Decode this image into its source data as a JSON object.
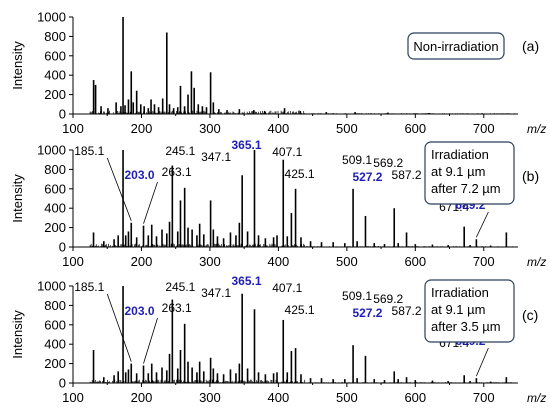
{
  "chart_data": [
    {
      "type": "bar",
      "panel_label": "(a)",
      "condition_lines": [
        "Non-irradiation"
      ],
      "xlabel": "m/z",
      "ylabel": "Intensity",
      "xlim": [
        100,
        750
      ],
      "ylim": [
        0,
        1000
      ],
      "x_ticks": [
        "100",
        "200",
        "300",
        "400",
        "500",
        "600",
        "700"
      ],
      "y_ticks": [
        "0",
        "200",
        "400",
        "600",
        "800",
        "1000"
      ],
      "peak_labels": [],
      "peaks": [
        {
          "x": 130.1,
          "y": 350
        },
        {
          "x": 133,
          "y": 300
        },
        {
          "x": 141,
          "y": 80
        },
        {
          "x": 151,
          "y": 60
        },
        {
          "x": 163,
          "y": 120
        },
        {
          "x": 170,
          "y": 80
        },
        {
          "x": 173.1,
          "y": 1000
        },
        {
          "x": 176,
          "y": 90
        },
        {
          "x": 181,
          "y": 150
        },
        {
          "x": 185.1,
          "y": 440
        },
        {
          "x": 188,
          "y": 120
        },
        {
          "x": 193,
          "y": 240
        },
        {
          "x": 199,
          "y": 100
        },
        {
          "x": 204,
          "y": 80
        },
        {
          "x": 210,
          "y": 60
        },
        {
          "x": 214,
          "y": 150
        },
        {
          "x": 219,
          "y": 100
        },
        {
          "x": 225,
          "y": 70
        },
        {
          "x": 231,
          "y": 160
        },
        {
          "x": 237,
          "y": 840
        },
        {
          "x": 241,
          "y": 100
        },
        {
          "x": 247,
          "y": 60
        },
        {
          "x": 253,
          "y": 70
        },
        {
          "x": 257,
          "y": 290
        },
        {
          "x": 263,
          "y": 80
        },
        {
          "x": 268,
          "y": 200
        },
        {
          "x": 273,
          "y": 440
        },
        {
          "x": 277,
          "y": 270
        },
        {
          "x": 283,
          "y": 100
        },
        {
          "x": 289,
          "y": 80
        },
        {
          "x": 295,
          "y": 70
        },
        {
          "x": 301,
          "y": 430
        },
        {
          "x": 305,
          "y": 120
        },
        {
          "x": 313,
          "y": 50
        },
        {
          "x": 325,
          "y": 40
        },
        {
          "x": 343,
          "y": 50
        },
        {
          "x": 364,
          "y": 40
        },
        {
          "x": 380,
          "y": 30
        },
        {
          "x": 409,
          "y": 60
        },
        {
          "x": 432,
          "y": 30
        },
        {
          "x": 470,
          "y": 20
        },
        {
          "x": 512,
          "y": 20
        },
        {
          "x": 560,
          "y": 15
        },
        {
          "x": 620,
          "y": 10
        }
      ]
    },
    {
      "type": "bar",
      "panel_label": "(b)",
      "condition_lines": [
        "Irradiation",
        "at 9.1 µm",
        "after 7.2 µm"
      ],
      "xlabel": "m/z",
      "ylabel": "Intensity",
      "xlim": [
        100,
        750
      ],
      "ylim": [
        0,
        1000
      ],
      "x_ticks": [
        "100",
        "200",
        "300",
        "400",
        "500",
        "600",
        "700"
      ],
      "y_ticks": [
        "0",
        "200",
        "400",
        "600",
        "800",
        "1000"
      ],
      "peak_labels": [
        {
          "text": "185.1",
          "x": 185.1,
          "highlight": false
        },
        {
          "text": "203.0",
          "x": 203.0,
          "highlight": true
        },
        {
          "text": "245.1",
          "x": 245.1,
          "highlight": false
        },
        {
          "text": "263.1",
          "x": 263.1,
          "highlight": false
        },
        {
          "text": "347.1",
          "x": 347.1,
          "highlight": false
        },
        {
          "text": "365.1",
          "x": 365.1,
          "highlight": true
        },
        {
          "text": "407.1",
          "x": 407.1,
          "highlight": false
        },
        {
          "text": "425.1",
          "x": 425.1,
          "highlight": false
        },
        {
          "text": "509.1",
          "x": 509.1,
          "highlight": false
        },
        {
          "text": "527.2",
          "x": 527.2,
          "highlight": true
        },
        {
          "text": "569.2",
          "x": 569.2,
          "highlight": false
        },
        {
          "text": "587.2",
          "x": 587.2,
          "highlight": false
        },
        {
          "text": "671.4",
          "x": 671.4,
          "highlight": false
        },
        {
          "text": "689.2",
          "x": 689.2,
          "highlight": true
        }
      ],
      "peaks": [
        {
          "x": 130,
          "y": 150
        },
        {
          "x": 145,
          "y": 60
        },
        {
          "x": 160,
          "y": 80
        },
        {
          "x": 166,
          "y": 120
        },
        {
          "x": 173.1,
          "y": 1000
        },
        {
          "x": 177,
          "y": 120
        },
        {
          "x": 181,
          "y": 160
        },
        {
          "x": 185.1,
          "y": 250
        },
        {
          "x": 193,
          "y": 100
        },
        {
          "x": 203.0,
          "y": 220
        },
        {
          "x": 210,
          "y": 120
        },
        {
          "x": 215,
          "y": 230
        },
        {
          "x": 222,
          "y": 110
        },
        {
          "x": 230,
          "y": 180
        },
        {
          "x": 237,
          "y": 140
        },
        {
          "x": 241,
          "y": 260
        },
        {
          "x": 245.1,
          "y": 840
        },
        {
          "x": 253,
          "y": 160
        },
        {
          "x": 257,
          "y": 480
        },
        {
          "x": 263.1,
          "y": 610
        },
        {
          "x": 268,
          "y": 200
        },
        {
          "x": 274,
          "y": 180
        },
        {
          "x": 281,
          "y": 120
        },
        {
          "x": 285,
          "y": 240
        },
        {
          "x": 291,
          "y": 130
        },
        {
          "x": 301,
          "y": 480
        },
        {
          "x": 305,
          "y": 180
        },
        {
          "x": 311,
          "y": 110
        },
        {
          "x": 320,
          "y": 90
        },
        {
          "x": 330,
          "y": 150
        },
        {
          "x": 338,
          "y": 120
        },
        {
          "x": 343,
          "y": 250
        },
        {
          "x": 347.1,
          "y": 740
        },
        {
          "x": 355,
          "y": 160
        },
        {
          "x": 365.1,
          "y": 1000
        },
        {
          "x": 371,
          "y": 120
        },
        {
          "x": 381,
          "y": 90
        },
        {
          "x": 393,
          "y": 100
        },
        {
          "x": 398,
          "y": 120
        },
        {
          "x": 407.1,
          "y": 900
        },
        {
          "x": 413,
          "y": 110
        },
        {
          "x": 419,
          "y": 350
        },
        {
          "x": 425.1,
          "y": 600
        },
        {
          "x": 433,
          "y": 100
        },
        {
          "x": 447,
          "y": 60
        },
        {
          "x": 463,
          "y": 50
        },
        {
          "x": 480,
          "y": 50
        },
        {
          "x": 497,
          "y": 40
        },
        {
          "x": 509.1,
          "y": 600
        },
        {
          "x": 515,
          "y": 60
        },
        {
          "x": 527.2,
          "y": 320
        },
        {
          "x": 540,
          "y": 40
        },
        {
          "x": 555,
          "y": 30
        },
        {
          "x": 569.2,
          "y": 400
        },
        {
          "x": 575,
          "y": 40
        },
        {
          "x": 587.2,
          "y": 150
        },
        {
          "x": 600,
          "y": 30
        },
        {
          "x": 625,
          "y": 25
        },
        {
          "x": 648,
          "y": 20
        },
        {
          "x": 671.4,
          "y": 210
        },
        {
          "x": 680,
          "y": 20
        },
        {
          "x": 689.2,
          "y": 80
        },
        {
          "x": 710,
          "y": 15
        },
        {
          "x": 733,
          "y": 150
        }
      ]
    },
    {
      "type": "bar",
      "panel_label": "(c)",
      "condition_lines": [
        "Irradiation",
        "at 9.1 µm",
        "after 3.5 µm"
      ],
      "xlabel": "m/z",
      "ylabel": "Intensity",
      "xlim": [
        100,
        750
      ],
      "ylim": [
        0,
        1000
      ],
      "x_ticks": [
        "100",
        "200",
        "300",
        "400",
        "500",
        "600",
        "700"
      ],
      "y_ticks": [
        "0",
        "200",
        "400",
        "600",
        "800",
        "1000"
      ],
      "peak_labels": [
        {
          "text": "185.1",
          "x": 185.1,
          "highlight": false
        },
        {
          "text": "203.0",
          "x": 203.0,
          "highlight": true
        },
        {
          "text": "245.1",
          "x": 245.1,
          "highlight": false
        },
        {
          "text": "263.1",
          "x": 263.1,
          "highlight": false
        },
        {
          "text": "347.1",
          "x": 347.1,
          "highlight": false
        },
        {
          "text": "365.1",
          "x": 365.1,
          "highlight": true
        },
        {
          "text": "407.1",
          "x": 407.1,
          "highlight": false
        },
        {
          "text": "425.1",
          "x": 425.1,
          "highlight": false
        },
        {
          "text": "509.1",
          "x": 509.1,
          "highlight": false
        },
        {
          "text": "527.2",
          "x": 527.2,
          "highlight": true
        },
        {
          "text": "569.2",
          "x": 569.2,
          "highlight": false
        },
        {
          "text": "587.2",
          "x": 587.2,
          "highlight": false
        },
        {
          "text": "671.4",
          "x": 671.4,
          "highlight": false
        },
        {
          "text": "689.2",
          "x": 689.2,
          "highlight": true
        }
      ],
      "peaks": [
        {
          "x": 130,
          "y": 340
        },
        {
          "x": 145,
          "y": 60
        },
        {
          "x": 160,
          "y": 80
        },
        {
          "x": 166,
          "y": 120
        },
        {
          "x": 173.1,
          "y": 1000
        },
        {
          "x": 177,
          "y": 110
        },
        {
          "x": 181,
          "y": 140
        },
        {
          "x": 185.1,
          "y": 200
        },
        {
          "x": 193,
          "y": 100
        },
        {
          "x": 203.0,
          "y": 180
        },
        {
          "x": 210,
          "y": 100
        },
        {
          "x": 215,
          "y": 200
        },
        {
          "x": 222,
          "y": 110
        },
        {
          "x": 230,
          "y": 160
        },
        {
          "x": 237,
          "y": 130
        },
        {
          "x": 241,
          "y": 300
        },
        {
          "x": 245.1,
          "y": 860
        },
        {
          "x": 253,
          "y": 150
        },
        {
          "x": 257,
          "y": 340
        },
        {
          "x": 263.1,
          "y": 610
        },
        {
          "x": 268,
          "y": 220
        },
        {
          "x": 274,
          "y": 160
        },
        {
          "x": 281,
          "y": 110
        },
        {
          "x": 285,
          "y": 220
        },
        {
          "x": 291,
          "y": 120
        },
        {
          "x": 301,
          "y": 260
        },
        {
          "x": 305,
          "y": 150
        },
        {
          "x": 311,
          "y": 100
        },
        {
          "x": 320,
          "y": 90
        },
        {
          "x": 330,
          "y": 140
        },
        {
          "x": 338,
          "y": 100
        },
        {
          "x": 343,
          "y": 200
        },
        {
          "x": 347.1,
          "y": 920
        },
        {
          "x": 355,
          "y": 150
        },
        {
          "x": 365.1,
          "y": 760
        },
        {
          "x": 371,
          "y": 110
        },
        {
          "x": 381,
          "y": 90
        },
        {
          "x": 393,
          "y": 100
        },
        {
          "x": 398,
          "y": 110
        },
        {
          "x": 407.1,
          "y": 650
        },
        {
          "x": 413,
          "y": 110
        },
        {
          "x": 419,
          "y": 330
        },
        {
          "x": 425.1,
          "y": 360
        },
        {
          "x": 433,
          "y": 90
        },
        {
          "x": 447,
          "y": 50
        },
        {
          "x": 463,
          "y": 50
        },
        {
          "x": 480,
          "y": 40
        },
        {
          "x": 497,
          "y": 40
        },
        {
          "x": 509.1,
          "y": 390
        },
        {
          "x": 515,
          "y": 50
        },
        {
          "x": 527.2,
          "y": 280
        },
        {
          "x": 540,
          "y": 40
        },
        {
          "x": 555,
          "y": 30
        },
        {
          "x": 569.2,
          "y": 120
        },
        {
          "x": 575,
          "y": 40
        },
        {
          "x": 587.2,
          "y": 60
        },
        {
          "x": 600,
          "y": 30
        },
        {
          "x": 625,
          "y": 25
        },
        {
          "x": 648,
          "y": 20
        },
        {
          "x": 671.4,
          "y": 80
        },
        {
          "x": 680,
          "y": 20
        },
        {
          "x": 689.2,
          "y": 50
        },
        {
          "x": 710,
          "y": 15
        },
        {
          "x": 733,
          "y": 60
        }
      ]
    }
  ]
}
